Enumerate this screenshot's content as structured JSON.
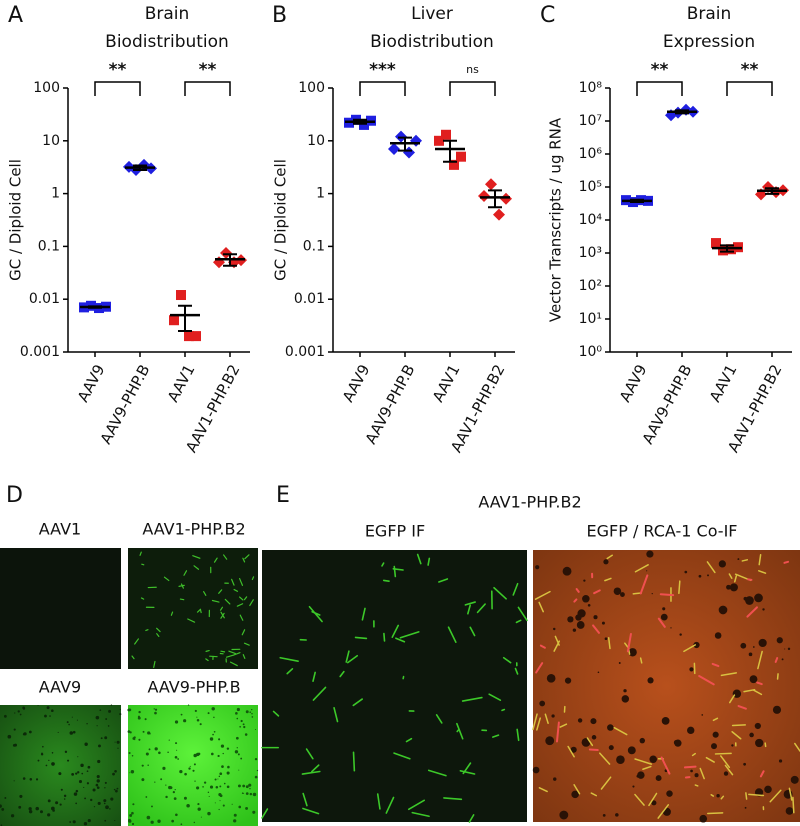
{
  "chart_data": [
    {
      "type": "dot",
      "panel": "A",
      "title": [
        "Brain",
        "Biodistribution"
      ],
      "y_label": "GC / Diploid Cell",
      "log_scale": true,
      "ylim": [
        0.001,
        100
      ],
      "yticks": [
        0.001,
        0.01,
        0.1,
        1,
        10,
        100
      ],
      "categories": [
        "AAV9",
        "AAV9-PHP.B",
        "AAV1",
        "AAV1-PHP.B2"
      ],
      "colors": [
        "#1f1fe0",
        "#1f1fe0",
        "#e01f1f",
        "#e01f1f"
      ],
      "markers": [
        "square",
        "diamond",
        "square",
        "diamond"
      ],
      "points": [
        [
          0.007,
          0.0075,
          0.0068,
          0.0072
        ],
        [
          3.2,
          2.8,
          3.5,
          3.0
        ],
        [
          0.004,
          0.012,
          0.002,
          0.002
        ],
        [
          0.05,
          0.075,
          0.05,
          0.055
        ]
      ],
      "means": [
        0.0071,
        3.1,
        0.005,
        0.057
      ],
      "errors": [
        0.0002,
        0.3,
        0.0025,
        0.014
      ],
      "significance": [
        "**",
        "**"
      ]
    },
    {
      "type": "dot",
      "panel": "B",
      "title": [
        "Liver",
        "Biodistribution"
      ],
      "y_label": "GC / Diploid Cell",
      "log_scale": true,
      "ylim": [
        0.001,
        100
      ],
      "yticks": [
        0.001,
        0.01,
        0.1,
        1,
        10,
        100
      ],
      "categories": [
        "AAV9",
        "AAV9-PHP.B",
        "AAV1",
        "AAV1-PHP.B2"
      ],
      "colors": [
        "#1f1fe0",
        "#1f1fe0",
        "#e01f1f",
        "#e01f1f"
      ],
      "markers": [
        "square",
        "diamond",
        "square",
        "diamond"
      ],
      "points": [
        [
          22,
          25,
          20,
          24
        ],
        [
          7,
          12,
          6,
          10
        ],
        [
          10,
          13,
          3.5,
          5
        ],
        [
          0.9,
          1.5,
          0.4,
          0.8
        ]
      ],
      "means": [
        23,
        9,
        7,
        0.85
      ],
      "errors": [
        2,
        2.5,
        3,
        0.3
      ],
      "significance": [
        "***",
        "ns"
      ]
    },
    {
      "type": "dot",
      "panel": "C",
      "title": [
        "Brain",
        "Expression"
      ],
      "y_label": "Vector Transcripts / ug RNA",
      "log_scale": true,
      "ylim": [
        1,
        100000000
      ],
      "yticks": [
        {
          "value": 1,
          "label": "10⁰"
        },
        {
          "value": 10,
          "label": "10¹"
        },
        {
          "value": 100,
          "label": "10²"
        },
        {
          "value": 1000,
          "label": "10³"
        },
        {
          "value": 10000,
          "label": "10⁴"
        },
        {
          "value": 100000,
          "label": "10⁵"
        },
        {
          "value": 1000000,
          "label": "10⁶"
        },
        {
          "value": 10000000,
          "label": "10⁷"
        },
        {
          "value": 100000000,
          "label": "10⁸"
        }
      ],
      "categories": [
        "AAV9",
        "AAV9-PHP.B",
        "AAV1",
        "AAV1-PHP.B2"
      ],
      "colors": [
        "#1f1fe0",
        "#1f1fe0",
        "#e01f1f",
        "#e01f1f"
      ],
      "markers": [
        "square",
        "diamond",
        "square",
        "diamond"
      ],
      "points": [
        [
          40000,
          35000,
          40000,
          38000
        ],
        [
          15000000,
          18000000,
          22000000,
          19000000
        ],
        [
          2000,
          1200,
          1300,
          1500
        ],
        [
          60000,
          100000,
          70000,
          80000
        ]
      ],
      "means": [
        38000,
        19000000,
        1400,
        77000
      ],
      "errors": [
        3000,
        2000000,
        300,
        15000
      ],
      "significance": [
        "**",
        "**"
      ]
    }
  ],
  "image_panels": [
    {
      "letter": "D",
      "labels": [
        "AAV1",
        "AAV1-PHP.B2",
        "AAV9",
        "AAV9-PHP.B"
      ]
    },
    {
      "letter": "E",
      "title": "AAV1-PHP.B2",
      "labels": [
        "EGFP IF",
        "EGFP / RCA-1 Co-IF"
      ]
    }
  ]
}
